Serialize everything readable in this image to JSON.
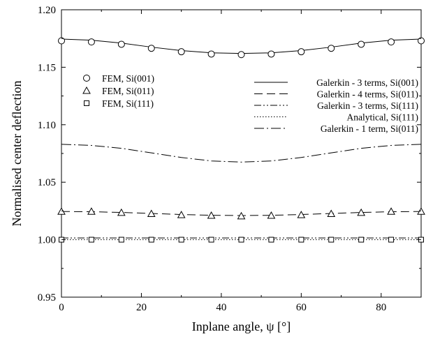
{
  "chart_data": {
    "type": "line",
    "title": "",
    "xlabel": "Inplane angle, ψ [°]",
    "ylabel": "Normalised center deflection",
    "xlim": [
      0,
      90
    ],
    "ylim": [
      0.95,
      1.2
    ],
    "xticks": [
      0,
      20,
      40,
      60,
      80
    ],
    "xtick_labels": [
      "0",
      "20",
      "40",
      "60",
      "80"
    ],
    "yticks": [
      0.95,
      1.0,
      1.05,
      1.1,
      1.15,
      1.2
    ],
    "ytick_labels": [
      "0.95",
      "1.00",
      "1.05",
      "1.10",
      "1.15",
      "1.20"
    ],
    "grid": false,
    "legend_left_placement": "upper-left",
    "legend_right_placement": "upper-right",
    "markers": [
      {
        "name": "FEM, Si(001)",
        "marker": "circle",
        "x": [
          0,
          7.5,
          15,
          22.5,
          30,
          37.5,
          45,
          52.5,
          60,
          67.5,
          75,
          82.5,
          90
        ],
        "y": [
          1.173,
          1.172,
          1.17,
          1.1665,
          1.1635,
          1.1615,
          1.161,
          1.1615,
          1.1635,
          1.1665,
          1.17,
          1.172,
          1.173
        ]
      },
      {
        "name": "FEM, Si(011)",
        "marker": "triangle",
        "x": [
          0,
          7.5,
          15,
          22.5,
          30,
          37.5,
          45,
          52.5,
          60,
          67.5,
          75,
          82.5,
          90
        ],
        "y": [
          1.0245,
          1.0245,
          1.0235,
          1.0225,
          1.0215,
          1.021,
          1.0205,
          1.021,
          1.0215,
          1.0225,
          1.0235,
          1.0245,
          1.0245
        ]
      },
      {
        "name": "FEM, Si(111)",
        "marker": "square",
        "x": [
          0,
          7.5,
          15,
          22.5,
          30,
          37.5,
          45,
          52.5,
          60,
          67.5,
          75,
          82.5,
          90
        ],
        "y": [
          1.0,
          1.0,
          1.0,
          1.0,
          1.0,
          1.0,
          1.0,
          1.0,
          1.0,
          1.0,
          1.0,
          1.0,
          1.0
        ]
      }
    ],
    "lines": [
      {
        "name": "Galerkin - 3 terms, Si(001)",
        "dash": "solid",
        "x": [
          0,
          7.5,
          15,
          22.5,
          30,
          37.5,
          45,
          52.5,
          60,
          67.5,
          75,
          82.5,
          90
        ],
        "y": [
          1.1745,
          1.1735,
          1.171,
          1.1675,
          1.1645,
          1.1625,
          1.162,
          1.1625,
          1.1645,
          1.1675,
          1.171,
          1.1735,
          1.1745
        ]
      },
      {
        "name": "Galerkin - 4 terms, Si(011)",
        "dash": "longdash",
        "x": [
          0,
          7.5,
          15,
          22.5,
          30,
          37.5,
          45,
          52.5,
          60,
          67.5,
          75,
          82.5,
          90
        ],
        "y": [
          1.0245,
          1.0243,
          1.0237,
          1.0228,
          1.0219,
          1.0212,
          1.021,
          1.0212,
          1.0219,
          1.0228,
          1.0237,
          1.0243,
          1.0245
        ]
      },
      {
        "name": "Galerkin - 3 terms, Si(111)",
        "dash": "dashdotdot",
        "x": [
          0,
          90
        ],
        "y": [
          1.0015,
          1.0015
        ]
      },
      {
        "name": "Analytical, Si(111)",
        "dash": "dotted",
        "x": [
          0,
          90
        ],
        "y": [
          1.0,
          1.0
        ]
      },
      {
        "name": "Galerkin - 1 term, Si(011)",
        "dash": "dashdot",
        "x": [
          0,
          7.5,
          15,
          22.5,
          30,
          37.5,
          45,
          52.5,
          60,
          67.5,
          75,
          82.5,
          90
        ],
        "y": [
          1.083,
          1.082,
          1.0795,
          1.0755,
          1.0715,
          1.0685,
          1.0675,
          1.0685,
          1.0715,
          1.0755,
          1.0795,
          1.082,
          1.083
        ]
      }
    ]
  }
}
